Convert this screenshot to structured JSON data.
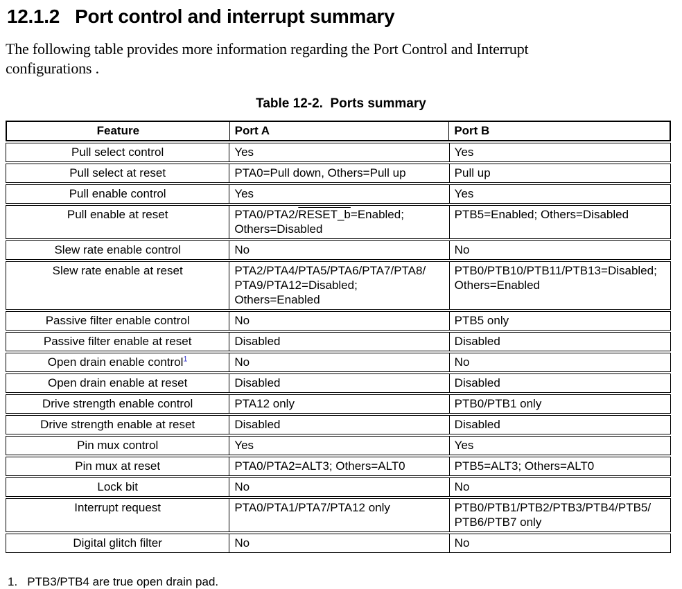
{
  "page": {
    "section_number": "12.1.2",
    "section_title": "Port control and interrupt summary",
    "intro_paragraph": "The following table provides more information regarding the Port Control and Interrupt\nconfigurations .",
    "table_caption": "Table 12-2.  Ports summary",
    "footnote_number": "1.",
    "footnote_text": "PTB3/PTB4 are true open drain pad."
  },
  "table": {
    "headers": {
      "feature": "Feature",
      "port_a": "Port A",
      "port_b": "Port B"
    },
    "rows": [
      {
        "feature": "Pull select control",
        "port_a": "Yes",
        "port_b": "Yes"
      },
      {
        "feature": "Pull select at reset",
        "port_a": "PTA0=Pull down, Others=Pull up",
        "port_b": "Pull up"
      },
      {
        "feature": "Pull enable control",
        "port_a": "Yes",
        "port_b": "Yes"
      },
      {
        "feature": "Pull enable at reset",
        "port_a_pre": "PTA0/PTA2/",
        "port_a_overline": "RESET_b",
        "port_a_post": "=Enabled;\nOthers=Disabled",
        "port_b": "PTB5=Enabled; Others=Disabled"
      },
      {
        "feature": "Slew rate enable control",
        "port_a": "No",
        "port_b": "No"
      },
      {
        "feature": "Slew rate enable at reset",
        "port_a": "PTA2/PTA4/PTA5/PTA6/PTA7/PTA8/\nPTA9/PTA12=Disabled; Others=Enabled",
        "port_b": "PTB0/PTB10/PTB11/PTB13=Disabled;\nOthers=Enabled"
      },
      {
        "feature": "Passive filter enable control",
        "port_a": "No",
        "port_b": "PTB5 only"
      },
      {
        "feature": "Passive filter enable at reset",
        "port_a": "Disabled",
        "port_b": "Disabled"
      },
      {
        "feature": "Open drain enable control",
        "footnote_ref": "1",
        "port_a": "No",
        "port_b": "No"
      },
      {
        "feature": "Open drain enable at reset",
        "port_a": "Disabled",
        "port_b": "Disabled"
      },
      {
        "feature": "Drive strength enable control",
        "port_a": "PTA12 only",
        "port_b": "PTB0/PTB1 only"
      },
      {
        "feature": "Drive strength enable at reset",
        "port_a": "Disabled",
        "port_b": "Disabled"
      },
      {
        "feature": "Pin mux control",
        "port_a": "Yes",
        "port_b": "Yes"
      },
      {
        "feature": "Pin mux at reset",
        "port_a": "PTA0/PTA2=ALT3; Others=ALT0",
        "port_b": "PTB5=ALT3; Others=ALT0"
      },
      {
        "feature": "Lock bit",
        "port_a": "No",
        "port_b": "No"
      },
      {
        "feature": "Interrupt request",
        "port_a": "PTA0/PTA1/PTA7/PTA12 only",
        "port_b": "PTB0/PTB1/PTB2/PTB3/PTB4/PTB5/\nPTB6/PTB7 only"
      },
      {
        "feature": "Digital glitch filter",
        "port_a": "No",
        "port_b": "No"
      }
    ]
  }
}
